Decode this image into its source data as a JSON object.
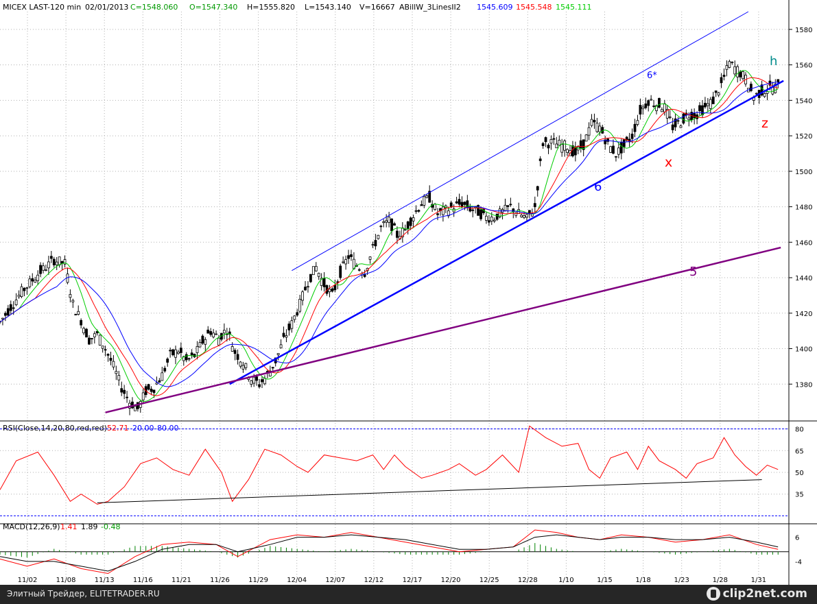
{
  "header": {
    "symbol": "MICEX LAST-120 min",
    "date": "02/01/2013",
    "close": "C=1548.060",
    "open": "O=1547.340",
    "high": "H=1555.820",
    "low": "L=1543.140",
    "volume": "V=16667",
    "indicator_name": "ABillW_3LinesII2",
    "indicator_v1": "1545.609",
    "indicator_v2": "1545.548",
    "indicator_v3": "1545.111"
  },
  "rsi_header": {
    "label": "RSI(Close,14,20,80,red,red)",
    "value": "52.71",
    "low": "20.00",
    "high": "80.00"
  },
  "macd_header": {
    "label": "MACD(12,26,9)",
    "v1": "1.41",
    "v2": "1.89",
    "v3": "-0.48"
  },
  "annotations": {
    "h": "h",
    "z": "z",
    "x": "x",
    "six": "6",
    "six_star": "6*",
    "five": "5"
  },
  "footer": {
    "text": "Элитный Трейдер, ELITETRADER.RU",
    "logo": "clip2net.com"
  },
  "colors": {
    "candle": "#000000",
    "ma_fast": "#00cc00",
    "ma_mid": "#ff0000",
    "ma_slow": "#0000ff",
    "trend_6": "#0000ff",
    "trend_5": "#800080",
    "rsi": "#ff0000",
    "rsi_band": "#0000ff",
    "macd_hist": "#008000",
    "grid": "#b0b0b0"
  },
  "chart_data": {
    "type": "line",
    "price": {
      "ylim": [
        1360,
        1590
      ],
      "yticks": [
        1380,
        1400,
        1420,
        1440,
        1460,
        1480,
        1500,
        1520,
        1540,
        1560,
        1580
      ],
      "x_labels": [
        "11/02",
        "11/08",
        "11/13",
        "11/16",
        "11/21",
        "11/26",
        "11/29",
        "12/04",
        "12/07",
        "12/12",
        "12/17",
        "12/20",
        "12/25",
        "12/28",
        "1/10",
        "1/15",
        "1/18",
        "1/23",
        "1/28",
        "1/31"
      ],
      "close_points": [
        [
          0,
          1415
        ],
        [
          8,
          1432
        ],
        [
          14,
          1442
        ],
        [
          20,
          1450
        ],
        [
          24,
          1448
        ],
        [
          27,
          1425
        ],
        [
          30,
          1416
        ],
        [
          33,
          1405
        ],
        [
          36,
          1408
        ],
        [
          39,
          1400
        ],
        [
          42,
          1390
        ],
        [
          45,
          1378
        ],
        [
          48,
          1370
        ],
        [
          51,
          1366
        ],
        [
          54,
          1376
        ],
        [
          57,
          1378
        ],
        [
          60,
          1385
        ],
        [
          63,
          1396
        ],
        [
          66,
          1399
        ],
        [
          69,
          1393
        ],
        [
          72,
          1396
        ],
        [
          75,
          1404
        ],
        [
          78,
          1410
        ],
        [
          81,
          1406
        ],
        [
          84,
          1411
        ],
        [
          87,
          1398
        ],
        [
          90,
          1392
        ],
        [
          93,
          1383
        ],
        [
          96,
          1380
        ],
        [
          99,
          1385
        ],
        [
          102,
          1393
        ],
        [
          105,
          1405
        ],
        [
          108,
          1414
        ],
        [
          111,
          1425
        ],
        [
          114,
          1438
        ],
        [
          117,
          1446
        ],
        [
          120,
          1436
        ],
        [
          123,
          1430
        ],
        [
          126,
          1443
        ],
        [
          129,
          1452
        ],
        [
          132,
          1447
        ],
        [
          135,
          1443
        ],
        [
          138,
          1456
        ],
        [
          141,
          1468
        ],
        [
          144,
          1472
        ],
        [
          147,
          1464
        ],
        [
          150,
          1467
        ],
        [
          153,
          1475
        ],
        [
          156,
          1482
        ],
        [
          159,
          1485
        ],
        [
          162,
          1476
        ],
        [
          165,
          1478
        ],
        [
          168,
          1480
        ],
        [
          171,
          1482
        ],
        [
          174,
          1479
        ],
        [
          177,
          1477
        ],
        [
          180,
          1474
        ],
        [
          183,
          1474
        ],
        [
          186,
          1477
        ],
        [
          189,
          1480
        ],
        [
          192,
          1476
        ],
        [
          195,
          1473
        ],
        [
          198,
          1480
        ],
        [
          201,
          1516
        ],
        [
          204,
          1516
        ],
        [
          207,
          1515
        ],
        [
          210,
          1514
        ],
        [
          213,
          1510
        ],
        [
          216,
          1515
        ],
        [
          219,
          1527
        ],
        [
          222,
          1525
        ],
        [
          225,
          1515
        ],
        [
          228,
          1510
        ],
        [
          231,
          1514
        ],
        [
          234,
          1520
        ],
        [
          237,
          1534
        ],
        [
          240,
          1540
        ],
        [
          243,
          1538
        ],
        [
          246,
          1536
        ],
        [
          249,
          1525
        ],
        [
          252,
          1528
        ],
        [
          255,
          1532
        ],
        [
          258,
          1532
        ],
        [
          261,
          1536
        ],
        [
          264,
          1540
        ],
        [
          267,
          1549
        ],
        [
          270,
          1561
        ],
        [
          273,
          1557
        ],
        [
          276,
          1552
        ],
        [
          279,
          1542
        ],
        [
          282,
          1545
        ],
        [
          285,
          1547
        ],
        [
          288,
          1548
        ]
      ],
      "candle_range": [
        1364,
        1565
      ]
    },
    "moving_averages": [
      {
        "name": "1545.111",
        "color": "#00cc00",
        "values_end": 1545.111
      },
      {
        "name": "1545.548",
        "color": "#ff0000",
        "values_end": 1545.548
      },
      {
        "name": "1545.609",
        "color": "#0000ff",
        "values_end": 1545.609
      }
    ],
    "trendlines": [
      {
        "label": "6",
        "x": [
          85,
          290
        ],
        "y": [
          1380,
          1551
        ]
      },
      {
        "label": "6*",
        "x": [
          108,
          277
        ],
        "y": [
          1444,
          1590
        ]
      },
      {
        "label": "5",
        "x": [
          39,
          289
        ],
        "y": [
          1364,
          1457
        ]
      }
    ],
    "rsi": {
      "ylim": [
        15,
        85
      ],
      "yticks": [
        35,
        50,
        65,
        80
      ],
      "band_low": 20,
      "band_high": 80,
      "points": [
        [
          0,
          38
        ],
        [
          6,
          58
        ],
        [
          14,
          64
        ],
        [
          20,
          48
        ],
        [
          26,
          30
        ],
        [
          30,
          35
        ],
        [
          36,
          28
        ],
        [
          40,
          30
        ],
        [
          46,
          40
        ],
        [
          52,
          56
        ],
        [
          58,
          60
        ],
        [
          64,
          52
        ],
        [
          70,
          48
        ],
        [
          76,
          66
        ],
        [
          82,
          50
        ],
        [
          86,
          30
        ],
        [
          92,
          45
        ],
        [
          98,
          66
        ],
        [
          104,
          62
        ],
        [
          110,
          54
        ],
        [
          114,
          50
        ],
        [
          120,
          62
        ],
        [
          126,
          60
        ],
        [
          132,
          58
        ],
        [
          138,
          62
        ],
        [
          142,
          52
        ],
        [
          146,
          62
        ],
        [
          150,
          54
        ],
        [
          156,
          46
        ],
        [
          160,
          48
        ],
        [
          166,
          52
        ],
        [
          170,
          56
        ],
        [
          176,
          48
        ],
        [
          180,
          52
        ],
        [
          186,
          62
        ],
        [
          192,
          50
        ],
        [
          196,
          82
        ],
        [
          202,
          74
        ],
        [
          208,
          68
        ],
        [
          214,
          70
        ],
        [
          218,
          52
        ],
        [
          222,
          46
        ],
        [
          226,
          60
        ],
        [
          232,
          64
        ],
        [
          236,
          52
        ],
        [
          240,
          68
        ],
        [
          244,
          58
        ],
        [
          250,
          52
        ],
        [
          254,
          46
        ],
        [
          258,
          56
        ],
        [
          264,
          60
        ],
        [
          268,
          74
        ],
        [
          272,
          62
        ],
        [
          276,
          54
        ],
        [
          280,
          48
        ],
        [
          284,
          55
        ],
        [
          288,
          52
        ]
      ],
      "trendline": {
        "x": [
          36,
          282
        ],
        "y": [
          29,
          45
        ]
      }
    },
    "macd": {
      "ylim": [
        -10,
        11
      ],
      "yticks": [
        -4,
        6
      ],
      "macd_points": [
        [
          0,
          -3
        ],
        [
          10,
          -6
        ],
        [
          20,
          -3
        ],
        [
          30,
          -7
        ],
        [
          40,
          -9
        ],
        [
          50,
          -2
        ],
        [
          60,
          3
        ],
        [
          70,
          4
        ],
        [
          80,
          3
        ],
        [
          88,
          -2
        ],
        [
          100,
          5
        ],
        [
          110,
          7
        ],
        [
          120,
          6
        ],
        [
          130,
          8
        ],
        [
          140,
          6
        ],
        [
          150,
          4
        ],
        [
          160,
          2
        ],
        [
          170,
          0
        ],
        [
          180,
          1
        ],
        [
          190,
          2
        ],
        [
          198,
          9
        ],
        [
          206,
          8
        ],
        [
          214,
          6
        ],
        [
          222,
          5
        ],
        [
          230,
          7
        ],
        [
          240,
          6
        ],
        [
          250,
          4
        ],
        [
          260,
          5
        ],
        [
          270,
          7
        ],
        [
          280,
          3
        ],
        [
          288,
          1
        ]
      ],
      "signal_points": [
        [
          0,
          -2
        ],
        [
          10,
          -4
        ],
        [
          20,
          -4
        ],
        [
          30,
          -6
        ],
        [
          40,
          -8
        ],
        [
          50,
          -4
        ],
        [
          60,
          1
        ],
        [
          70,
          3
        ],
        [
          80,
          3
        ],
        [
          88,
          0
        ],
        [
          100,
          3
        ],
        [
          110,
          6
        ],
        [
          120,
          6
        ],
        [
          130,
          7
        ],
        [
          140,
          6
        ],
        [
          150,
          5
        ],
        [
          160,
          3
        ],
        [
          170,
          1
        ],
        [
          180,
          1
        ],
        [
          190,
          2
        ],
        [
          198,
          6
        ],
        [
          206,
          7
        ],
        [
          214,
          6
        ],
        [
          222,
          5
        ],
        [
          230,
          6
        ],
        [
          240,
          6
        ],
        [
          250,
          5
        ],
        [
          260,
          5
        ],
        [
          270,
          6
        ],
        [
          280,
          4
        ],
        [
          288,
          2
        ]
      ]
    }
  }
}
